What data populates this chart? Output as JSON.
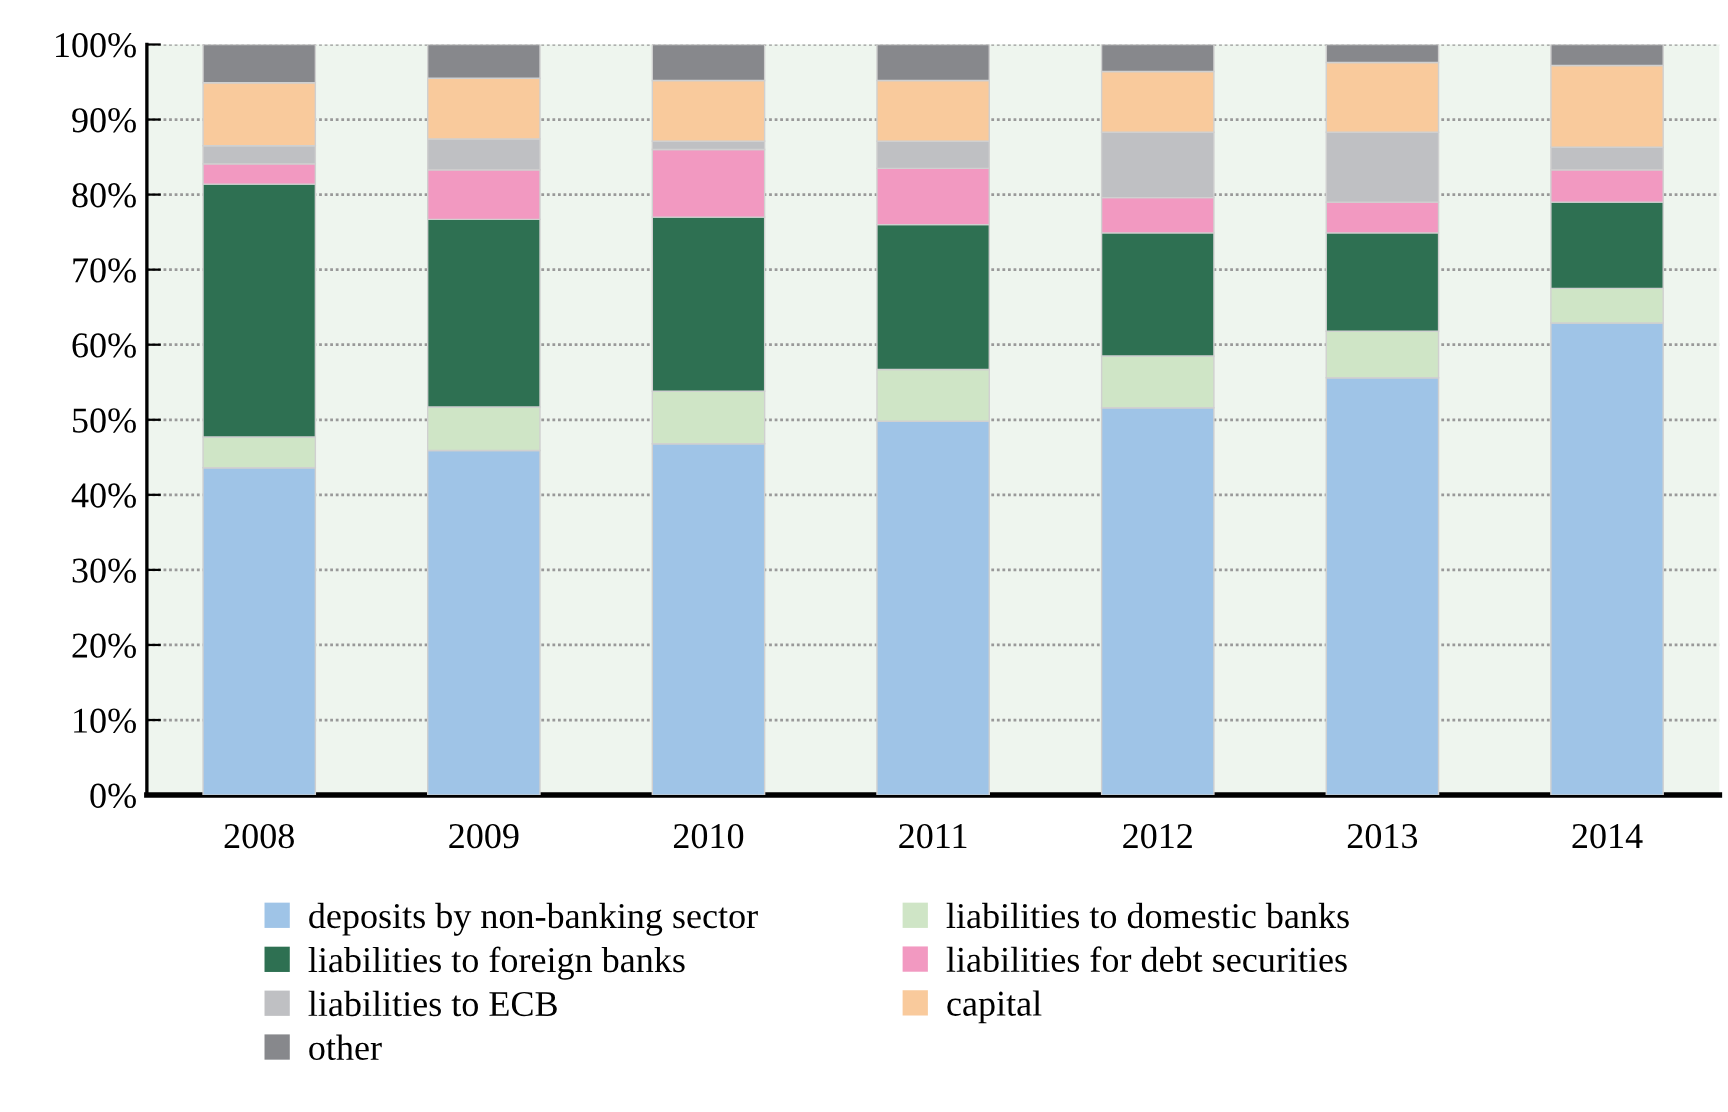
{
  "chart_data": {
    "type": "bar",
    "stacked": true,
    "categories": [
      "2008",
      "2009",
      "2010",
      "2011",
      "2012",
      "2013",
      "2014"
    ],
    "series": [
      {
        "name": "deposits by non-banking sector",
        "color": "#9fc4e7",
        "values": [
          43.6,
          45.9,
          46.8,
          49.8,
          51.6,
          55.6,
          62.9
        ]
      },
      {
        "name": "liabilities to domestic banks",
        "color": "#cfe5c6",
        "values": [
          4.1,
          5.8,
          7.0,
          6.9,
          6.9,
          6.2,
          4.6
        ]
      },
      {
        "name": "liabilities to foreign banks",
        "color": "#2e7052",
        "values": [
          33.7,
          25.0,
          23.2,
          19.3,
          16.4,
          13.1,
          11.5
        ]
      },
      {
        "name": "liabilities for debt securities",
        "color": "#f299c1",
        "values": [
          2.7,
          6.6,
          9.0,
          7.5,
          4.7,
          4.1,
          4.3
        ]
      },
      {
        "name": "liabilities to ECB",
        "color": "#bfc0c3",
        "values": [
          2.4,
          4.1,
          1.1,
          3.6,
          8.7,
          9.3,
          3.0
        ]
      },
      {
        "name": "capital",
        "color": "#f9ca9c",
        "values": [
          8.4,
          8.1,
          8.1,
          8.1,
          8.1,
          9.3,
          10.9
        ]
      },
      {
        "name": "other",
        "color": "#87888c",
        "values": [
          5.1,
          4.5,
          4.8,
          4.8,
          3.6,
          2.4,
          2.8
        ]
      }
    ],
    "ylim": [
      0,
      100
    ],
    "yticks": [
      {
        "value": 0,
        "label": "0%"
      },
      {
        "value": 10,
        "label": "10%"
      },
      {
        "value": 20,
        "label": "20%"
      },
      {
        "value": 30,
        "label": "30%"
      },
      {
        "value": 40,
        "label": "40%"
      },
      {
        "value": 50,
        "label": "50%"
      },
      {
        "value": 60,
        "label": "60%"
      },
      {
        "value": 70,
        "label": "70%"
      },
      {
        "value": 80,
        "label": "80%"
      },
      {
        "value": 90,
        "label": "90%"
      },
      {
        "value": 100,
        "label": "100%"
      }
    ],
    "grid": "y",
    "legend": "bottom"
  }
}
